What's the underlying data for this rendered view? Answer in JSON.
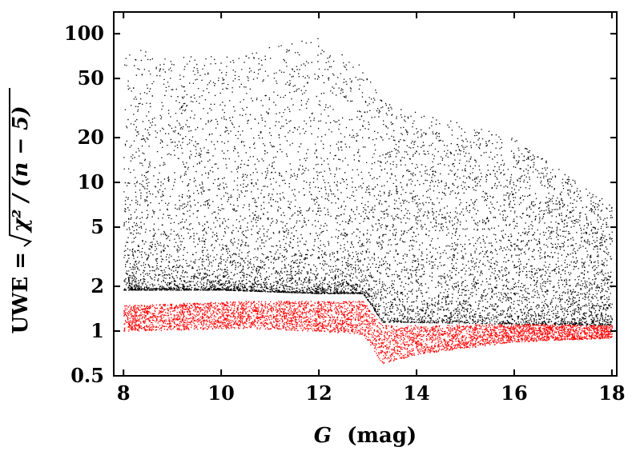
{
  "chart_data": {
    "type": "scatter",
    "x_range": [
      7.8,
      18.1
    ],
    "y_range": [
      0.5,
      140
    ],
    "y_scale": "log",
    "grid": false,
    "legend": "none",
    "xlabel": {
      "var": "G",
      "unit": "(mag)"
    },
    "ylabel": {
      "prefix": "UWE =",
      "expr": "χ² / (n − 5)"
    },
    "x_ticks": [
      8,
      10,
      12,
      14,
      16,
      18
    ],
    "x_tick_labels": [
      "8",
      "10",
      "12",
      "14",
      "16",
      "18"
    ],
    "y_ticks": [
      0.5,
      1,
      2,
      5,
      10,
      20,
      50,
      100
    ],
    "y_tick_labels": [
      "0.5",
      "1",
      "2",
      "5",
      "10",
      "20",
      "50",
      "100"
    ],
    "series": [
      {
        "color": "#000000",
        "description_points": [
          {
            "x": 8,
            "y_low": 1.9,
            "y_high": 80
          },
          {
            "x": 10,
            "y_low": 1.9,
            "y_high": 70
          },
          {
            "x": 12,
            "y_low": 1.8,
            "y_high": 95
          },
          {
            "x": 12.9,
            "y_low": 1.8,
            "y_high": 60
          },
          {
            "x": 13.3,
            "y_low": 1.15,
            "y_high": 35
          },
          {
            "x": 14,
            "y_low": 1.15,
            "y_high": 30
          },
          {
            "x": 16,
            "y_low": 1.12,
            "y_high": 20
          },
          {
            "x": 18,
            "y_low": 1.1,
            "y_high": 7
          }
        ]
      },
      {
        "color": "#ff0000",
        "description_points": [
          {
            "x": 8,
            "y_low": 1.0,
            "y_high": 1.5
          },
          {
            "x": 10.5,
            "y_low": 1.05,
            "y_high": 1.6
          },
          {
            "x": 12,
            "y_low": 1.0,
            "y_high": 1.6
          },
          {
            "x": 12.9,
            "y_low": 0.95,
            "y_high": 1.6
          },
          {
            "x": 13.3,
            "y_low": 0.6,
            "y_high": 1.1
          },
          {
            "x": 14,
            "y_low": 0.7,
            "y_high": 1.1
          },
          {
            "x": 16,
            "y_low": 0.85,
            "y_high": 1.12
          },
          {
            "x": 18,
            "y_low": 0.9,
            "y_high": 1.1
          }
        ]
      }
    ]
  }
}
